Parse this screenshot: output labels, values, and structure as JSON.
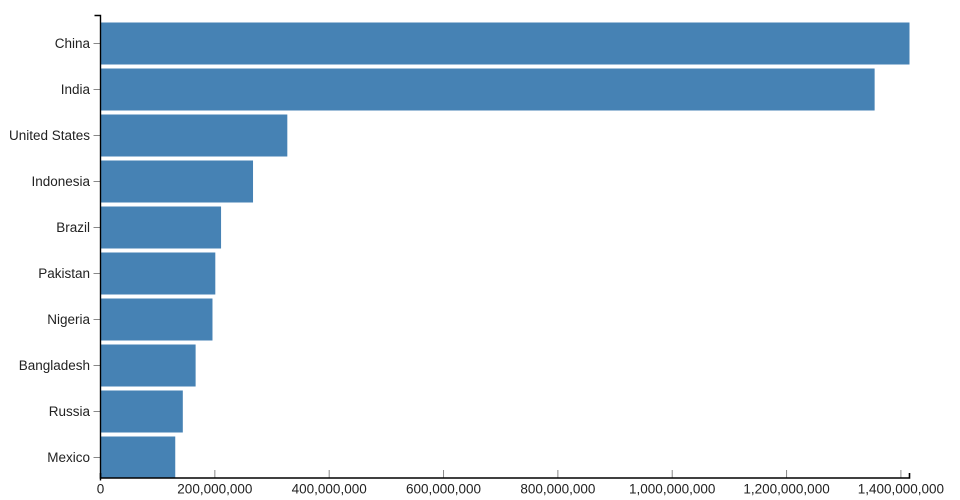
{
  "chart_data": {
    "type": "bar",
    "orientation": "horizontal",
    "title": "",
    "xlabel": "",
    "ylabel": "",
    "grid": false,
    "legend": false,
    "categories": [
      "China",
      "India",
      "United States",
      "Indonesia",
      "Brazil",
      "Pakistan",
      "Nigeria",
      "Bangladesh",
      "Russia",
      "Mexico"
    ],
    "values": [
      1415045928,
      1354051854,
      326766748,
      266794980,
      210867954,
      200813818,
      195875237,
      166368149,
      143964709,
      130759074
    ],
    "xlim": [
      0,
      1415045928
    ],
    "x_ticks": [
      {
        "value": 0,
        "label": "0"
      },
      {
        "value": 200000000,
        "label": "200,000,000"
      },
      {
        "value": 400000000,
        "label": "400,000,000"
      },
      {
        "value": 600000000,
        "label": "600,000,000"
      },
      {
        "value": 800000000,
        "label": "800,000,000"
      },
      {
        "value": 1000000000,
        "label": "1,000,000,000"
      },
      {
        "value": 1200000000,
        "label": "1,200,000,000"
      },
      {
        "value": 1400000000,
        "label": "1,400,000,000"
      }
    ],
    "colors": {
      "bar": "#4682b4",
      "axis_line": "#000000",
      "tick_mark": "#888888",
      "tick_label": "#222222"
    }
  }
}
